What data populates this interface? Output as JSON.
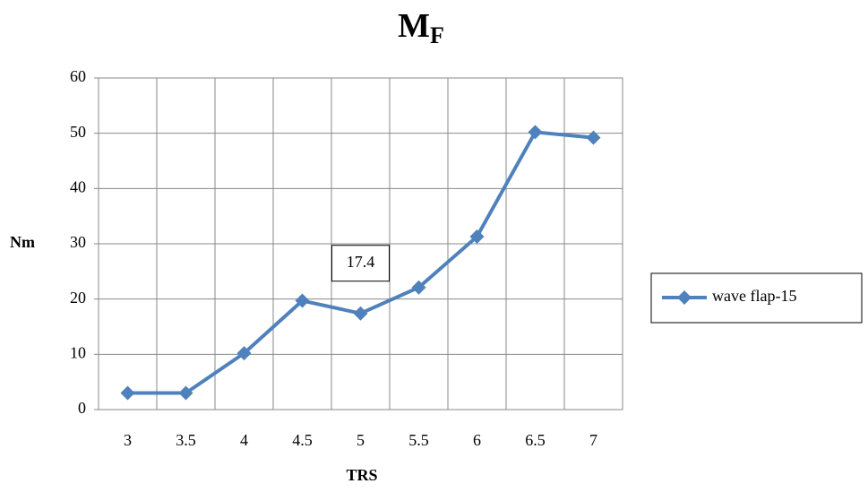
{
  "chart_data": {
    "type": "line",
    "title": "M",
    "title_subscript": "F",
    "x_label": "TRS",
    "y_label": "Nm",
    "categories": [
      "3",
      "3.5",
      "4",
      "4.5",
      "5",
      "5.5",
      "6",
      "6.5",
      "7"
    ],
    "series": [
      {
        "name": "wave flap-15",
        "color": "#4f81bd",
        "values": [
          3,
          3,
          10.2,
          19.7,
          17.4,
          22.1,
          31.3,
          50.2,
          49.2
        ],
        "value_labels": [
          null,
          null,
          null,
          null,
          "17.4",
          null,
          null,
          null,
          null
        ]
      }
    ],
    "ylim": [
      0,
      60
    ],
    "yticks": [
      0,
      10,
      20,
      30,
      40,
      50,
      60
    ],
    "grid": true,
    "legend": "right"
  }
}
